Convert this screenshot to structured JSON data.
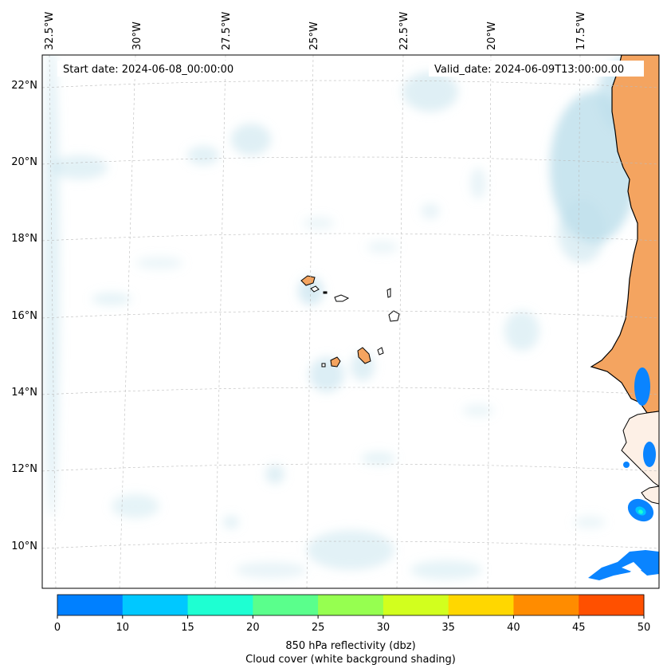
{
  "map": {
    "start_date": "Start date: 2024-06-08_00:00:00",
    "valid_date": "Valid_date: 2024-06-09T13:00:00.00",
    "lon_labels": [
      "32.5°W",
      "30°W",
      "27.5°W",
      "25°W",
      "22.5°W",
      "20°W",
      "17.5°W"
    ],
    "lat_labels": [
      "22°N",
      "20°N",
      "18°N",
      "16°N",
      "14°N",
      "12°N",
      "10°N"
    ]
  },
  "colorbar": {
    "colors": [
      "#0080ff",
      "#00c8ff",
      "#1effd2",
      "#5aff8c",
      "#96ff50",
      "#d2ff1e",
      "#ffd700",
      "#ff8c00",
      "#ff5000"
    ],
    "ticks": [
      "0",
      "10",
      "15",
      "20",
      "25",
      "30",
      "35",
      "40",
      "45",
      "50"
    ],
    "label": "850 hPa reflectivity (dbz)",
    "sublabel": "Cloud cover (white background shading)"
  },
  "colors": {
    "land": "#f4a460",
    "cloud": "#bfe0ec",
    "reflectivity_low": "#0a84ff",
    "reflectivity_high": "#1effd2"
  }
}
